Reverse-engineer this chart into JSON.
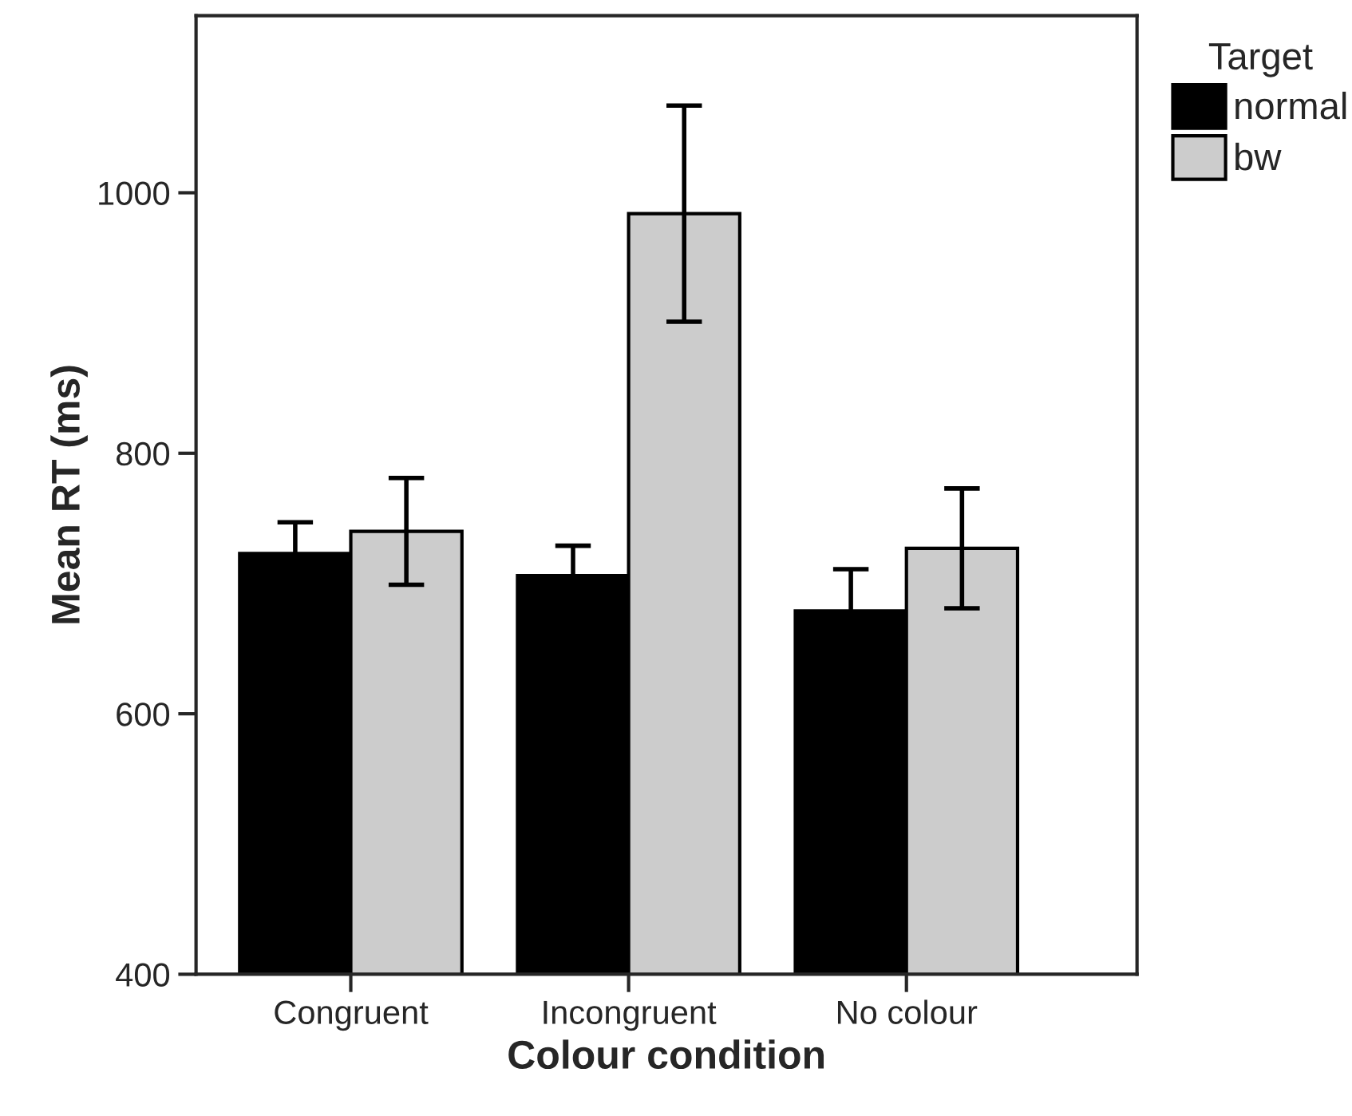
{
  "chart_data": {
    "type": "bar",
    "xlabel": "Colour condition",
    "ylabel": "Mean RT (ms)",
    "legend_title": "Target",
    "categories": [
      "Congruent",
      "Incongruent",
      "No colour"
    ],
    "series": [
      {
        "name": "normal",
        "color": "#000000",
        "values": [
          723,
          706,
          679
        ],
        "errors": [
          24,
          23,
          32
        ]
      },
      {
        "name": "bw",
        "color": "#cccccc",
        "values": [
          740,
          984,
          727
        ],
        "errors": [
          41,
          83,
          46
        ]
      }
    ],
    "ylim": [
      400,
      1136
    ],
    "yticks": [
      400,
      600,
      800,
      1000
    ],
    "grid": false,
    "legend": "top right"
  }
}
